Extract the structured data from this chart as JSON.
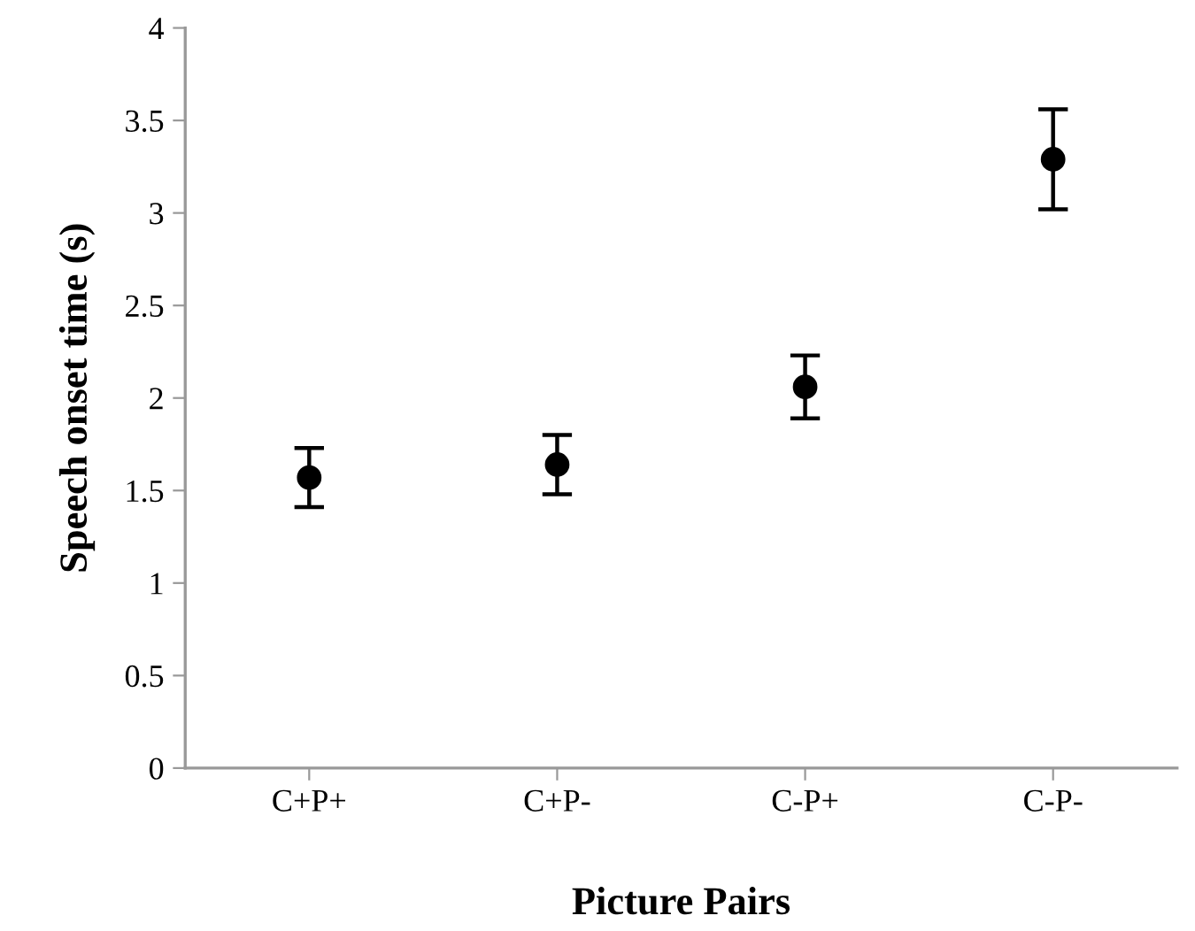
{
  "chart_data": {
    "type": "scatter",
    "xlabel": "Picture Pairs",
    "ylabel": "Speech onset time (s)",
    "categories": [
      "C+P+",
      "C+P-",
      "C-P+",
      "C-P-"
    ],
    "values": [
      1.57,
      1.64,
      2.06,
      3.29
    ],
    "errors": [
      0.16,
      0.16,
      0.17,
      0.27
    ],
    "color": "#000000",
    "marker": "circle",
    "ylim": [
      0,
      4
    ],
    "yticks": [
      0,
      0.5,
      1,
      1.5,
      2,
      2.5,
      3,
      3.5,
      4
    ],
    "grid": false,
    "legend": false
  }
}
